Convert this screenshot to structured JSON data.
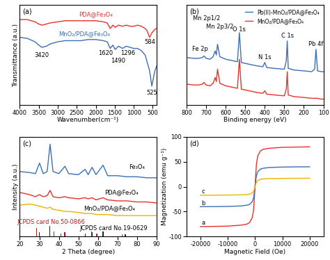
{
  "chart_data": [
    {
      "type": "line",
      "title": "(a)",
      "x_label": "Wavenumber(cm⁻¹)",
      "y_label": "Transmittance (a.u.)",
      "tick_labels": "x",
      "x": [
        4000,
        3800,
        3600,
        3500,
        3420,
        3300,
        3200,
        3000,
        2800,
        2600,
        2400,
        2200,
        2000,
        1800,
        1700,
        1620,
        1550,
        1490,
        1400,
        1296,
        1200,
        1100,
        1000,
        900,
        800,
        700,
        650,
        584,
        525,
        450,
        400
      ],
      "series": [
        {
          "color": "#e8312a",
          "values": [
            82,
            82,
            80,
            78,
            77,
            78,
            79,
            80,
            81,
            81,
            81,
            81,
            81,
            80,
            79,
            74,
            77,
            75,
            77,
            76,
            77,
            76,
            76,
            77,
            76,
            74,
            72,
            66,
            70,
            73,
            74
          ]
        },
        {
          "color": "#3b6fb6",
          "values": [
            66,
            65,
            62,
            59,
            57,
            58,
            60,
            62,
            63,
            63,
            63,
            64,
            64,
            63,
            62,
            56,
            59,
            55,
            58,
            56,
            58,
            57,
            56,
            56,
            54,
            50,
            44,
            36,
            22,
            35,
            40
          ]
        }
      ],
      "xlim": [
        4000,
        400
      ],
      "xticks": [
        4000,
        3500,
        3000,
        2500,
        2000,
        1500,
        1000,
        500
      ],
      "ylim": [
        5,
        95
      ],
      "annotations": [
        {
          "text": "PDA@Fe₃O₄",
          "x": 2000,
          "y": 87,
          "color": "#e8312a"
        },
        {
          "text": "MnO₂/PDA@Fe₃O₄",
          "x": 2300,
          "y": 69,
          "color": "#3b6fb6"
        },
        {
          "text": "3420",
          "x": 3420,
          "y": 50
        },
        {
          "text": "1620",
          "x": 1750,
          "y": 52
        },
        {
          "text": "1490",
          "x": 1420,
          "y": 45
        },
        {
          "text": "1296",
          "x": 1150,
          "y": 52
        },
        {
          "text": "584",
          "x": 584,
          "y": 62
        },
        {
          "text": "525",
          "x": 525,
          "y": 16
        }
      ]
    },
    {
      "type": "line",
      "title": "(b)",
      "x_label": "Binding energy (eV)",
      "tick_labels": "x",
      "legend": "upper right",
      "x": [
        800,
        760,
        740,
        720,
        711,
        700,
        680,
        665,
        654,
        648,
        642,
        630,
        600,
        560,
        540,
        530,
        520,
        480,
        440,
        410,
        400,
        390,
        350,
        300,
        290,
        285,
        280,
        250,
        200,
        160,
        145,
        138,
        130,
        110,
        100
      ],
      "series": [
        {
          "name": "Pb(II)-MnO₂/PDA@Fe₃O₄",
          "color": "#3b6fb6",
          "values": [
            62,
            61,
            61,
            62,
            64,
            61,
            60,
            63,
            70,
            65,
            78,
            63,
            60,
            58,
            57,
            92,
            56,
            54,
            52,
            51,
            56,
            50,
            49,
            48,
            58,
            82,
            49,
            47,
            46,
            45,
            48,
            72,
            46,
            45,
            45
          ]
        },
        {
          "name": "MnO₂/PDA@Fe₃O₄",
          "color": "#e8312a",
          "values": [
            30,
            29,
            29,
            30,
            32,
            29,
            28,
            31,
            38,
            33,
            48,
            31,
            28,
            26,
            25,
            60,
            24,
            22,
            20,
            19,
            22,
            18,
            17,
            16,
            24,
            45,
            17,
            15,
            14,
            13,
            13,
            13,
            13,
            12,
            12
          ]
        }
      ],
      "xlim": [
        800,
        100
      ],
      "xticks": [
        800,
        700,
        600,
        500,
        400,
        300,
        200,
        100
      ],
      "ylim": [
        5,
        125
      ],
      "annotations": [
        {
          "text": "Fe 2p",
          "x": 730,
          "y": 72
        },
        {
          "text": "Mn 2p1/2",
          "x": 700,
          "y": 109
        },
        {
          "text": "Mn 2p3/2",
          "x": 630,
          "y": 99
        },
        {
          "text": "O 1s",
          "x": 530,
          "y": 96
        },
        {
          "text": "N 1s",
          "x": 400,
          "y": 62
        },
        {
          "text": "C 1s",
          "x": 285,
          "y": 88
        },
        {
          "text": "Pb 4f",
          "x": 138,
          "y": 78
        }
      ]
    },
    {
      "type": "line",
      "title": "(c)",
      "x_label": "2 Theta (degree)",
      "y_label": "Intensity (a.u.)",
      "tick_labels": "x",
      "x": [
        20,
        25,
        28,
        30.1,
        32,
        34,
        35.5,
        37,
        40,
        43.1,
        45,
        50,
        53.4,
        55,
        57,
        59,
        62.6,
        65,
        70,
        75,
        80,
        85,
        90
      ],
      "series": [
        {
          "color": "#3b6fb6",
          "values": [
            62,
            61,
            60,
            70,
            60,
            62,
            88,
            62,
            60,
            67,
            60,
            59,
            64,
            59,
            66,
            59,
            68,
            58,
            58,
            57,
            57,
            56,
            56
          ]
        },
        {
          "color": "#e8312a",
          "values": [
            42,
            40,
            38,
            40,
            38,
            39,
            44,
            38,
            37,
            38,
            37,
            36,
            37,
            36,
            37,
            35,
            37,
            35,
            34,
            34,
            33,
            33,
            32
          ]
        },
        {
          "color": "#e8b400",
          "values": [
            30,
            31,
            30,
            29,
            28,
            27,
            28,
            26,
            25,
            24,
            24,
            23,
            22,
            22,
            22,
            21,
            21,
            21,
            20,
            20,
            20,
            20,
            20
          ]
        },
        {
          "type": "bar",
          "color": "#b22222",
          "x": [
            28.7,
            37.5,
            41,
            42.8,
            56.7,
            59.4,
            72.3
          ],
          "values": [
            8,
            5,
            3,
            4,
            5,
            3,
            2
          ]
        },
        {
          "type": "bar",
          "color": "#222222",
          "x": [
            30.1,
            35.4,
            43.1,
            53.4,
            57,
            62.6,
            74
          ],
          "values": [
            4,
            10,
            4,
            3,
            4,
            5,
            2
          ]
        }
      ],
      "xlim": [
        20,
        90
      ],
      "xticks": [
        20,
        30,
        40,
        50,
        60,
        70,
        80,
        90
      ],
      "ylim": [
        0,
        95
      ],
      "annotations": [
        {
          "text": "Fe₃O₄",
          "x": 80,
          "y": 66
        },
        {
          "text": "PDA@Fe₃O₄",
          "x": 72,
          "y": 42
        },
        {
          "text": "MnO₂/PDA@Fe₃O₄",
          "x": 66,
          "y": 27
        },
        {
          "text": "JCPDS card No.50-0866",
          "x": 36,
          "y": 14,
          "color": "#b22222"
        },
        {
          "text": "JCPDS card No.19-0629",
          "x": 68,
          "y": 8
        }
      ]
    },
    {
      "type": "line",
      "title": "(d)",
      "x_label": "Magnetic Field (Oe)",
      "y_label": "Magnetization (emu g⁻¹)",
      "x": [
        -20000,
        -15000,
        -10000,
        -5000,
        -3000,
        -2000,
        -1000,
        -500,
        0,
        500,
        1000,
        2000,
        3000,
        5000,
        10000,
        15000,
        20000
      ],
      "series": [
        {
          "color": "#e8312a",
          "values": [
            -80,
            -79.5,
            -79,
            -77,
            -75,
            -72,
            -62,
            -45,
            0,
            45,
            62,
            72,
            75,
            77,
            79,
            79.5,
            80
          ]
        },
        {
          "color": "#3b6fb6",
          "values": [
            -40,
            -39.8,
            -39.5,
            -38.5,
            -37,
            -35.5,
            -30,
            -22,
            0,
            22,
            30,
            35.5,
            37,
            38.5,
            39.5,
            39.8,
            40
          ]
        },
        {
          "color": "#e8b400",
          "values": [
            -17,
            -16.9,
            -16.7,
            -16.3,
            -15.8,
            -15,
            -12.5,
            -9,
            0,
            9,
            12.5,
            15,
            15.8,
            16.3,
            16.7,
            16.9,
            17
          ]
        }
      ],
      "xlim": [
        -25000,
        25000
      ],
      "xticks": [
        -20000,
        -10000,
        0,
        10000,
        20000
      ],
      "ylim": [
        -100,
        100
      ],
      "yticks": [
        -100,
        -50,
        0,
        50,
        100
      ],
      "annotations": [
        {
          "text": "a",
          "x": -19000,
          "y": -72
        },
        {
          "text": "b",
          "x": -19000,
          "y": -33
        },
        {
          "text": "c",
          "x": -19000,
          "y": -10
        }
      ]
    }
  ]
}
